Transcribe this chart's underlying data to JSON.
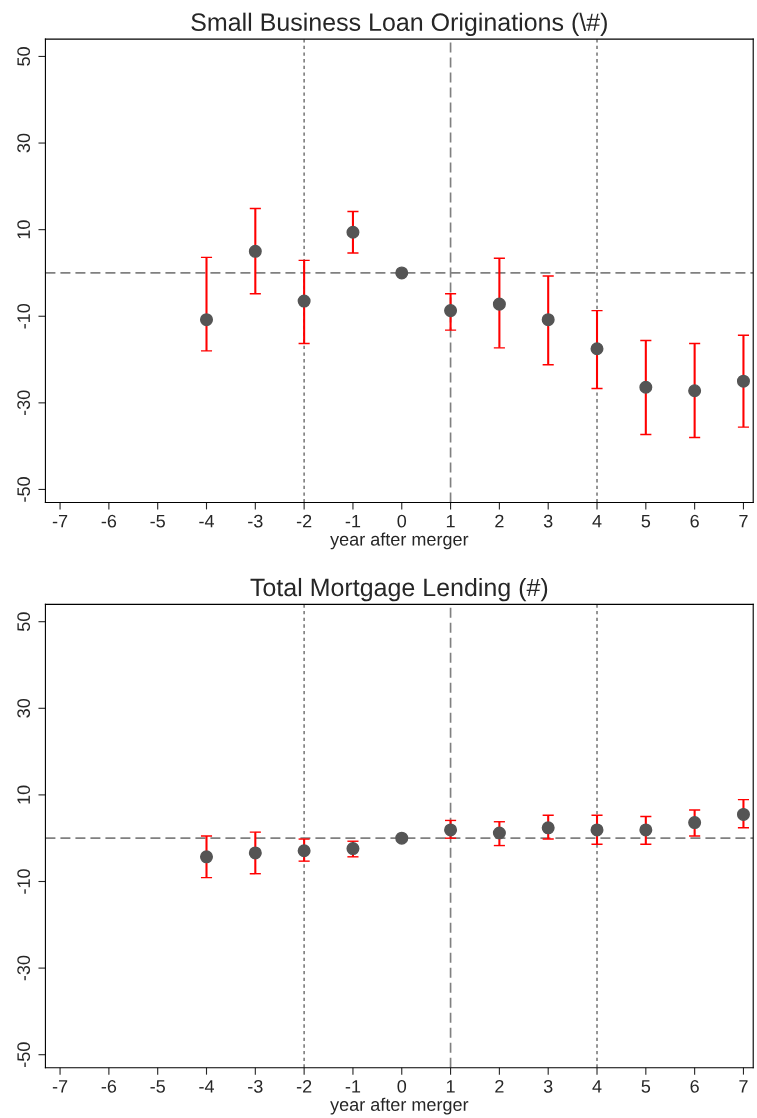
{
  "chart_data": [
    {
      "type": "scatter",
      "title": "Small Business Loan Originations (\\#)",
      "xlabel": "year after merger",
      "x": [
        -4,
        -3,
        -2,
        -1,
        0,
        1,
        2,
        3,
        4,
        5,
        6,
        7
      ],
      "series": [
        {
          "color": "#555555",
          "values": [
            -10.8,
            5.0,
            -6.5,
            9.4,
            0,
            -8.7,
            -7.2,
            -10.8,
            -17.5,
            -26.4,
            -27.2,
            -25.0
          ],
          "errors": [
            [
              -18.0,
              3.6
            ],
            [
              -4.8,
              14.9
            ],
            [
              -16.3,
              2.9
            ],
            [
              4.6,
              14.2
            ],
            null,
            [
              -13.2,
              -4.8
            ],
            [
              -17.3,
              3.4
            ],
            [
              -21.2,
              -0.7
            ],
            [
              -26.7,
              -8.7
            ],
            [
              -37.3,
              -15.6
            ],
            [
              -38.0,
              -16.3
            ],
            [
              -35.6,
              -14.4
            ]
          ]
        }
      ],
      "marker": "circle",
      "xlim": [
        -7.3,
        7.2
      ],
      "ylim": [
        -53,
        54
      ],
      "xticks": [
        -7,
        -6,
        -5,
        -4,
        -3,
        -2,
        -1,
        0,
        1,
        2,
        3,
        4,
        5,
        6,
        7
      ],
      "yticks": [
        -50,
        -30,
        -10,
        10,
        30,
        50
      ],
      "ref_lines": [
        {
          "axis": "x",
          "value": -2,
          "line_style": "dotted",
          "color": "#808080"
        },
        {
          "axis": "x",
          "value": 1,
          "line_style": "dashed",
          "color": "#808080"
        },
        {
          "axis": "x",
          "value": 4,
          "line_style": "dotted",
          "color": "#808080"
        },
        {
          "axis": "y",
          "value": 0,
          "line_style": "dashed",
          "color": "#808080"
        }
      ]
    },
    {
      "type": "scatter",
      "title": "Total Mortgage Lending (#)",
      "xlabel": "year after merger",
      "x": [
        -4,
        -3,
        -2,
        -1,
        0,
        1,
        2,
        3,
        4,
        5,
        6,
        7
      ],
      "series": [
        {
          "color": "#555555",
          "values": [
            -4.3,
            -3.4,
            -2.9,
            -2.4,
            0,
            1.9,
            1.2,
            2.4,
            1.9,
            1.9,
            3.6,
            5.5
          ],
          "errors": [
            [
              -9.1,
              0.5
            ],
            [
              -8.2,
              1.4
            ],
            [
              -5.3,
              -0.2
            ],
            [
              -4.3,
              -0.7
            ],
            null,
            [
              0,
              4.1
            ],
            [
              -1.7,
              3.8
            ],
            [
              -0.2,
              5.3
            ],
            [
              -1.4,
              5.3
            ],
            [
              -1.4,
              5.0
            ],
            [
              0.5,
              6.5
            ],
            [
              2.4,
              8.9
            ]
          ]
        }
      ],
      "marker": "circle",
      "xlim": [
        -7.3,
        7.2
      ],
      "ylim": [
        -53,
        54
      ],
      "xticks": [
        -7,
        -6,
        -5,
        -4,
        -3,
        -2,
        -1,
        0,
        1,
        2,
        3,
        4,
        5,
        6,
        7
      ],
      "yticks": [
        -50,
        -30,
        -10,
        10,
        30,
        50
      ],
      "ref_lines": [
        {
          "axis": "x",
          "value": -2,
          "line_style": "dotted",
          "color": "#808080"
        },
        {
          "axis": "x",
          "value": 1,
          "line_style": "dashed",
          "color": "#808080"
        },
        {
          "axis": "x",
          "value": 4,
          "line_style": "dotted",
          "color": "#808080"
        },
        {
          "axis": "y",
          "value": 0,
          "line_style": "dashed",
          "color": "#808080"
        }
      ]
    }
  ]
}
